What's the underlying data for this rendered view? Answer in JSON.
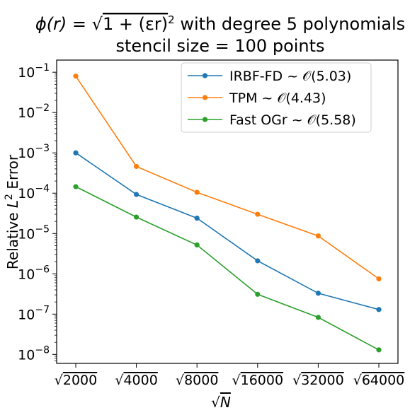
{
  "chart_data": {
    "type": "line",
    "title_lines": [
      "ϕ(r) = √(1 + (εr)²) with degree 5 polynomials",
      "stencil size = 100 points"
    ],
    "title_parts": {
      "phi": "ϕ(r) = ",
      "root": "√",
      "radicand": "1 + (εr)",
      "sq": "2",
      "tail": " with degree 5 polynomials"
    },
    "xlabel": {
      "root": "√",
      "symbol": "N"
    },
    "ylabel": {
      "prefix": "Relative ",
      "symbol": "L",
      "sup": "2",
      "suffix": " Error"
    },
    "x": [
      2000,
      4000,
      8000,
      16000,
      32000,
      64000
    ],
    "x_tick_labels": [
      "2000",
      "4000",
      "8000",
      "16000",
      "32000",
      "64000"
    ],
    "x_tick_prefix": "√",
    "y_scale": "log",
    "ylim": [
      6e-09,
      0.2
    ],
    "y_ticks": [
      {
        "base": "10",
        "exp": "−8",
        "value": 1e-08
      },
      {
        "base": "10",
        "exp": "−7",
        "value": 1e-07
      },
      {
        "base": "10",
        "exp": "−6",
        "value": 1e-06
      },
      {
        "base": "10",
        "exp": "−5",
        "value": 1e-05
      },
      {
        "base": "10",
        "exp": "−4",
        "value": 0.0001
      },
      {
        "base": "10",
        "exp": "−3",
        "value": 0.001
      },
      {
        "base": "10",
        "exp": "−2",
        "value": 0.01
      },
      {
        "base": "10",
        "exp": "−1",
        "value": 0.1
      }
    ],
    "grid": false,
    "legend_position": "upper-right",
    "series": [
      {
        "name": "IRBF-FD ~ 𝒪(5.03)",
        "color": "#1f77b4",
        "values": [
          0.001,
          9.3e-05,
          2.4e-05,
          2.1e-06,
          3.3e-07,
          1.3e-07
        ]
      },
      {
        "name": "TPM ~ 𝒪(4.43)",
        "color": "#ff7f0e",
        "values": [
          0.08,
          0.00046,
          0.000105,
          3e-05,
          8.7e-06,
          7.5e-07
        ]
      },
      {
        "name": "Fast OGr ~ 𝒪(5.58)",
        "color": "#2ca02c",
        "values": [
          0.000145,
          2.55e-05,
          5.2e-06,
          3.1e-07,
          8.3e-08,
          1.3e-08
        ]
      }
    ]
  }
}
